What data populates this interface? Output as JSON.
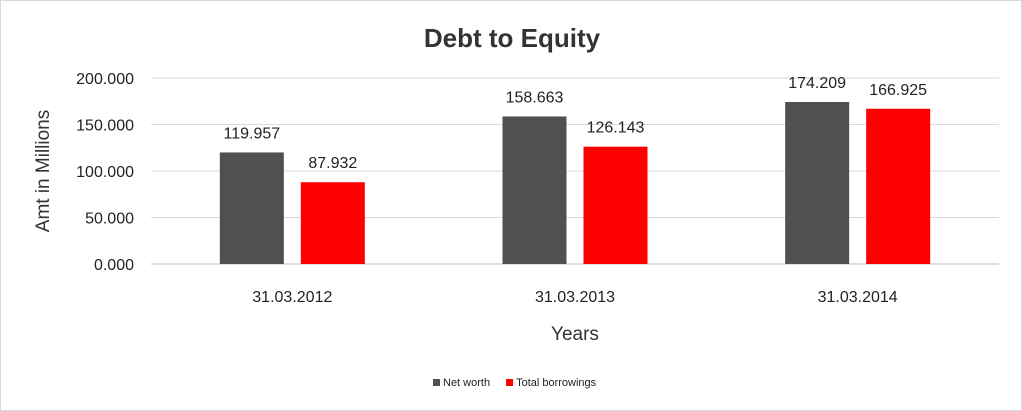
{
  "chart_data": {
    "type": "bar",
    "title": "Debt to Equity",
    "xlabel": "Years",
    "ylabel": "Amt in Millions",
    "categories": [
      "31.03.2012",
      "31.03.2013",
      "31.03.2014"
    ],
    "series": [
      {
        "name": "Net worth",
        "values": [
          119.957,
          158.663,
          174.209
        ],
        "color": "#505050"
      },
      {
        "name": "Total borrowings",
        "values": [
          87.932,
          126.143,
          166.925
        ],
        "color": "#ff0000"
      }
    ],
    "yticks": [
      "0.000",
      "50.000",
      "100.000",
      "150.000",
      "200.000"
    ],
    "ylim": [
      0,
      200
    ],
    "grid": true,
    "legend_position": "bottom"
  }
}
